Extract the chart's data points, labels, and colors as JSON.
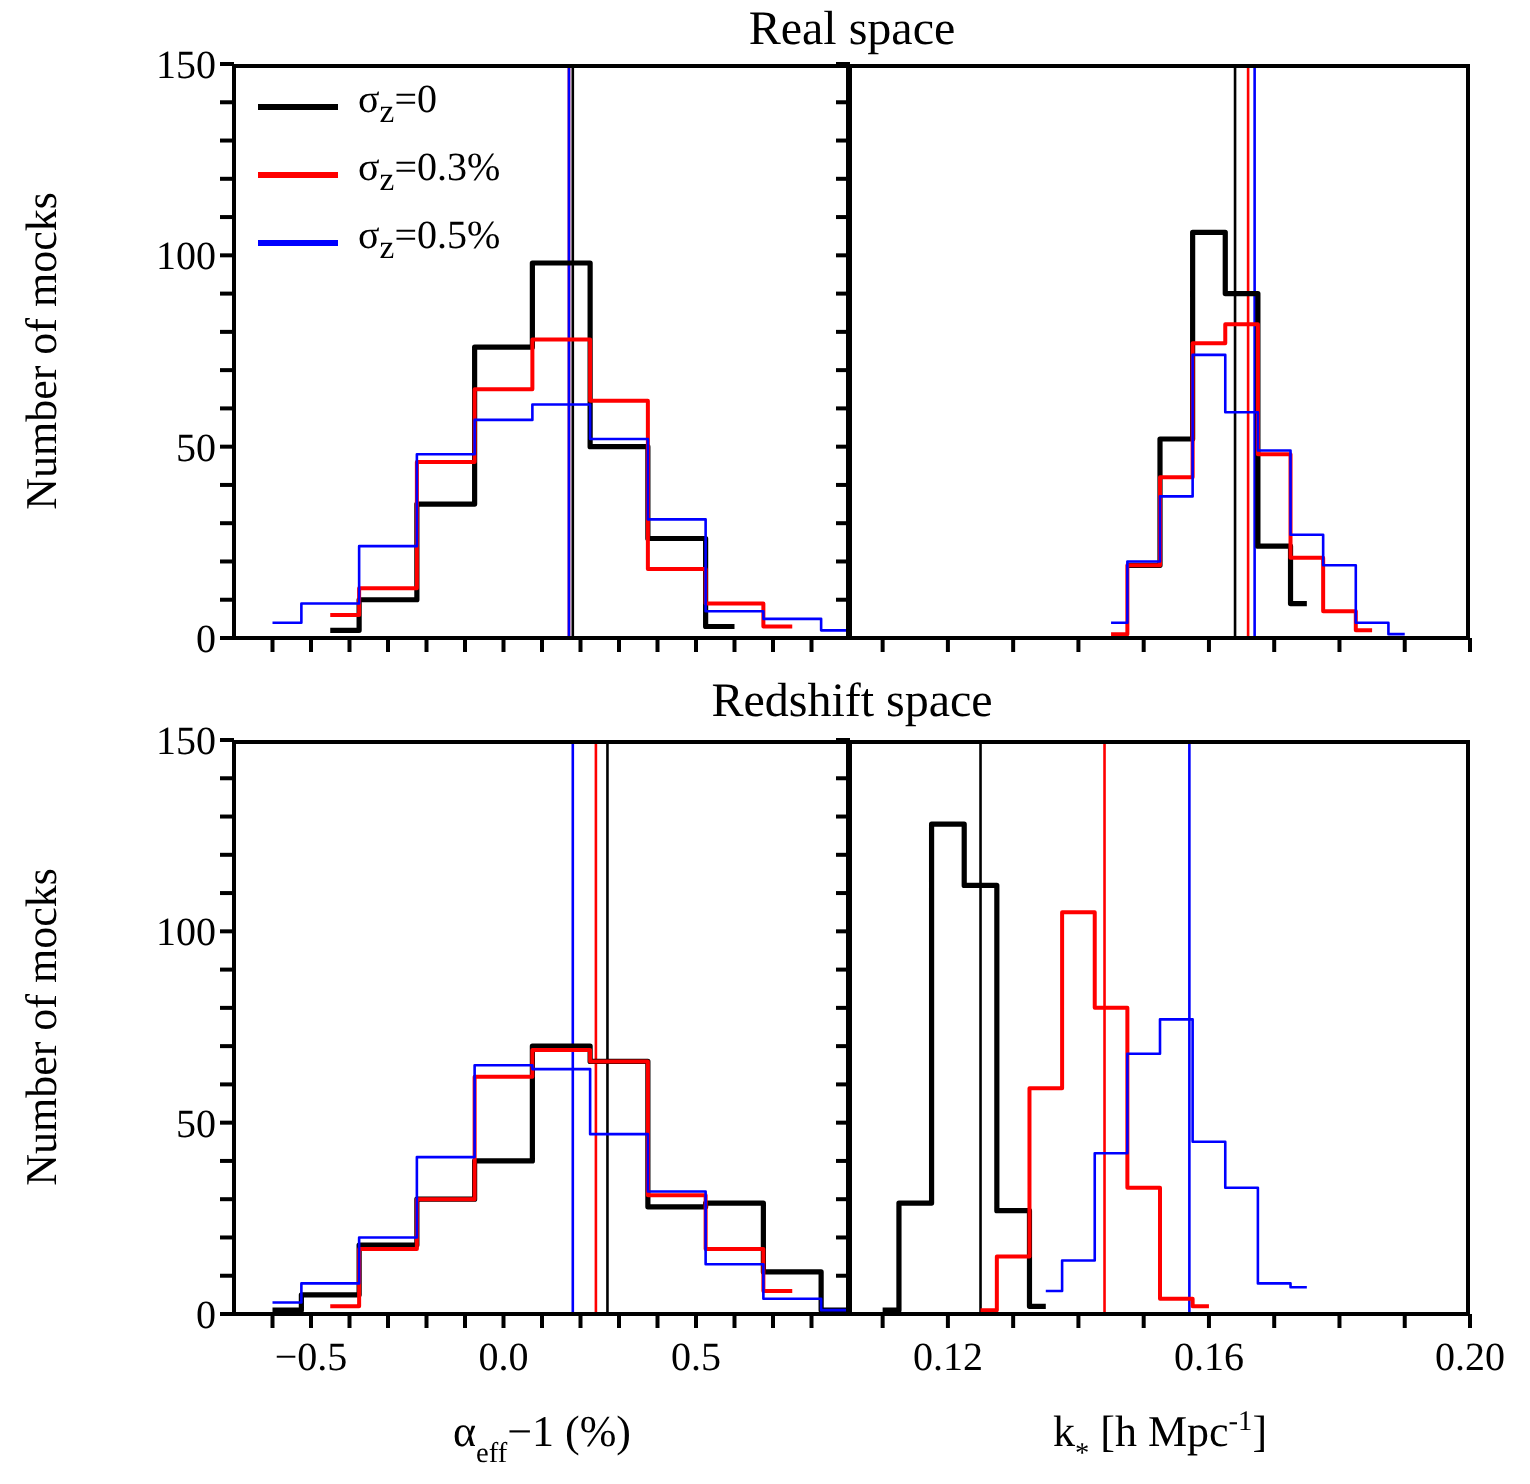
{
  "chart_data": [
    {
      "type": "step",
      "title": "Real space",
      "ylabel": "Number of mocks",
      "legend": "top left",
      "tick_labels": "y",
      "xlim": [
        -0.7,
        0.9
      ],
      "ylim": [
        0,
        150
      ],
      "xticks": [
        {
          "value": -0.6,
          "label": null
        },
        {
          "value": -0.5,
          "label": null
        },
        {
          "value": -0.4,
          "label": null
        },
        {
          "value": -0.3,
          "label": null
        },
        {
          "value": -0.2,
          "label": null
        },
        {
          "value": -0.1,
          "label": null
        },
        {
          "value": 0,
          "label": null
        },
        {
          "value": 0.1,
          "label": null
        },
        {
          "value": 0.2,
          "label": null
        },
        {
          "value": 0.3,
          "label": null
        },
        {
          "value": 0.4,
          "label": null
        },
        0.5,
        {
          "value": 0.6,
          "label": null
        },
        {
          "value": 0.7,
          "label": null
        },
        {
          "value": 0.8,
          "label": null
        }
      ],
      "yticks": [
        0,
        {
          "value": 10,
          "label": null
        },
        {
          "value": 20,
          "label": null
        },
        {
          "value": 30,
          "label": null
        },
        {
          "value": 40,
          "label": null
        },
        50,
        {
          "value": 60,
          "label": null
        },
        {
          "value": 70,
          "label": null
        },
        {
          "value": 80,
          "label": null
        },
        {
          "value": 90,
          "label": null
        },
        100,
        {
          "value": 110,
          "label": null
        },
        {
          "value": 120,
          "label": null
        },
        {
          "value": 130,
          "label": null
        },
        {
          "value": 140,
          "label": null
        },
        150
      ],
      "series": [
        {
          "name": "σ$_{z}$=0",
          "color": "#000000",
          "x": [
            -0.45,
            -0.375,
            -0.225,
            -0.075,
            0.075,
            0.225,
            0.375,
            0.525,
            0.6
          ],
          "values": [
            2,
            10,
            35,
            76,
            98,
            50,
            26,
            3,
            3
          ]
        },
        {
          "name": "σ$_{z}$=0.3%",
          "color": "#ff0000",
          "x": [
            -0.45,
            -0.375,
            -0.225,
            -0.075,
            0.075,
            0.225,
            0.375,
            0.525,
            0.675,
            0.75
          ],
          "values": [
            6,
            13,
            46,
            65,
            78,
            62,
            18,
            9,
            3,
            3
          ]
        },
        {
          "name": "σ$_{z}$=0.5%",
          "color": "#0000ff",
          "x": [
            -0.6,
            -0.525,
            -0.375,
            -0.225,
            -0.075,
            0.075,
            0.225,
            0.375,
            0.525,
            0.675,
            0.825,
            0.9
          ],
          "values": [
            4,
            9,
            24,
            48,
            57,
            61,
            52,
            31,
            7,
            5,
            2,
            2
          ]
        }
      ],
      "ref_lines": [
        {
          "axis": "x",
          "value": 0.18,
          "color": "#000000"
        },
        {
          "axis": "x",
          "value": 0.17,
          "color": "#ff0000"
        },
        {
          "axis": "x",
          "value": 0.17,
          "color": "#0000ff"
        }
      ]
    },
    {
      "type": "step",
      "tick_labels": false,
      "xlim": [
        0.105,
        0.2
      ],
      "ylim": [
        0,
        150
      ],
      "xticks": [
        {
          "value": 0.11,
          "label": null
        },
        0.12,
        {
          "value": 0.13,
          "label": null
        },
        {
          "value": 0.14,
          "label": null
        },
        {
          "value": 0.15,
          "label": null
        },
        0.16,
        {
          "value": 0.17,
          "label": null
        },
        {
          "value": 0.18,
          "label": null
        },
        {
          "value": 0.19,
          "label": null
        },
        {
          "value": 0.2,
          "label": null
        }
      ],
      "yticks": [
        0,
        {
          "value": 10,
          "label": null
        },
        {
          "value": 20,
          "label": null
        },
        {
          "value": 30,
          "label": null
        },
        {
          "value": 40,
          "label": null
        },
        50,
        {
          "value": 60,
          "label": null
        },
        {
          "value": 70,
          "label": null
        },
        {
          "value": 80,
          "label": null
        },
        {
          "value": 90,
          "label": null
        },
        100,
        {
          "value": 110,
          "label": null
        },
        {
          "value": 120,
          "label": null
        },
        {
          "value": 130,
          "label": null
        },
        {
          "value": 140,
          "label": null
        },
        150
      ],
      "series": [
        {
          "color": "#000000",
          "x": [
            0.1475,
            0.1525,
            0.1575,
            0.1625,
            0.1675,
            0.1725,
            0.175
          ],
          "values": [
            19,
            52,
            106,
            90,
            24,
            9,
            9
          ]
        },
        {
          "color": "#ff0000",
          "x": [
            0.145,
            0.1475,
            0.1525,
            0.1575,
            0.1625,
            0.1675,
            0.1725,
            0.1775,
            0.1825,
            0.185
          ],
          "values": [
            1,
            19,
            42,
            77,
            82,
            48,
            21,
            7,
            2,
            2
          ]
        },
        {
          "color": "#0000ff",
          "x": [
            0.145,
            0.1475,
            0.1525,
            0.1575,
            0.1625,
            0.1675,
            0.1725,
            0.1775,
            0.1825,
            0.1875,
            0.19
          ],
          "values": [
            4,
            20,
            37,
            74,
            59,
            49,
            27,
            19,
            4,
            1,
            1
          ]
        }
      ],
      "ref_lines": [
        {
          "axis": "x",
          "value": 0.164,
          "color": "#000000"
        },
        {
          "axis": "x",
          "value": 0.166,
          "color": "#ff0000"
        },
        {
          "axis": "x",
          "value": 0.167,
          "color": "#0000ff"
        }
      ]
    },
    {
      "type": "step",
      "title": "Redshift space",
      "xlabel": "α$_{eff}$−1 (%)",
      "ylabel": "Number of mocks",
      "xlim": [
        -0.7,
        0.9
      ],
      "ylim": [
        0,
        150
      ],
      "xticks": [
        {
          "value": -0.6,
          "label": null
        },
        {
          "value": -0.5,
          "label": "−0.5"
        },
        {
          "value": -0.4,
          "label": null
        },
        {
          "value": -0.3,
          "label": null
        },
        {
          "value": -0.2,
          "label": null
        },
        {
          "value": -0.1,
          "label": null
        },
        {
          "value": 0,
          "label": "0.0"
        },
        {
          "value": 0.1,
          "label": null
        },
        {
          "value": 0.2,
          "label": null
        },
        {
          "value": 0.3,
          "label": null
        },
        {
          "value": 0.4,
          "label": null
        },
        0.5,
        {
          "value": 0.6,
          "label": null
        },
        {
          "value": 0.7,
          "label": null
        },
        {
          "value": 0.8,
          "label": null
        }
      ],
      "yticks": [
        0,
        {
          "value": 10,
          "label": null
        },
        {
          "value": 20,
          "label": null
        },
        {
          "value": 30,
          "label": null
        },
        {
          "value": 40,
          "label": null
        },
        50,
        {
          "value": 60,
          "label": null
        },
        {
          "value": 70,
          "label": null
        },
        {
          "value": 80,
          "label": null
        },
        {
          "value": 90,
          "label": null
        },
        100,
        {
          "value": 110,
          "label": null
        },
        {
          "value": 120,
          "label": null
        },
        {
          "value": 130,
          "label": null
        },
        {
          "value": 140,
          "label": null
        },
        150
      ],
      "series": [
        {
          "color": "#000000",
          "x": [
            -0.6,
            -0.525,
            -0.375,
            -0.225,
            -0.075,
            0.075,
            0.225,
            0.375,
            0.525,
            0.675,
            0.825,
            0.9
          ],
          "values": [
            1,
            5,
            18,
            30,
            40,
            70,
            66,
            28,
            29,
            11,
            1,
            1
          ]
        },
        {
          "color": "#ff0000",
          "x": [
            -0.45,
            -0.375,
            -0.225,
            -0.075,
            0.075,
            0.225,
            0.375,
            0.525,
            0.675,
            0.75
          ],
          "values": [
            2,
            17,
            30,
            62,
            69,
            66,
            31,
            17,
            6,
            6
          ]
        },
        {
          "color": "#0000ff",
          "x": [
            -0.6,
            -0.525,
            -0.375,
            -0.225,
            -0.075,
            0.075,
            0.225,
            0.375,
            0.525,
            0.675,
            0.825,
            0.9
          ],
          "values": [
            3,
            8,
            20,
            41,
            65,
            64,
            47,
            32,
            13,
            4,
            1,
            1
          ]
        }
      ],
      "ref_lines": [
        {
          "axis": "x",
          "value": 0.27,
          "color": "#000000"
        },
        {
          "axis": "x",
          "value": 0.24,
          "color": "#ff0000"
        },
        {
          "axis": "x",
          "value": 0.18,
          "color": "#0000ff"
        }
      ]
    },
    {
      "type": "step",
      "xlabel": "k$_{*}$ [h Mpc$^{-1}$]",
      "tick_labels": "x",
      "xlim": [
        0.105,
        0.2
      ],
      "ylim": [
        0,
        150
      ],
      "xticks": [
        {
          "value": 0.11,
          "label": null
        },
        0.12,
        {
          "value": 0.13,
          "label": null
        },
        {
          "value": 0.14,
          "label": null
        },
        {
          "value": 0.15,
          "label": null
        },
        0.16,
        {
          "value": 0.17,
          "label": null
        },
        {
          "value": 0.18,
          "label": null
        },
        {
          "value": 0.19,
          "label": null
        },
        {
          "value": 0.2,
          "label": "0.20"
        }
      ],
      "yticks": [
        0,
        {
          "value": 10,
          "label": null
        },
        {
          "value": 20,
          "label": null
        },
        {
          "value": 30,
          "label": null
        },
        {
          "value": 40,
          "label": null
        },
        50,
        {
          "value": 60,
          "label": null
        },
        {
          "value": 70,
          "label": null
        },
        {
          "value": 80,
          "label": null
        },
        {
          "value": 90,
          "label": null
        },
        100,
        {
          "value": 110,
          "label": null
        },
        {
          "value": 120,
          "label": null
        },
        {
          "value": 130,
          "label": null
        },
        {
          "value": 140,
          "label": null
        },
        150
      ],
      "series": [
        {
          "color": "#000000",
          "x": [
            0.11,
            0.1125,
            0.1175,
            0.1225,
            0.1275,
            0.1325,
            0.135
          ],
          "values": [
            1,
            29,
            128,
            112,
            27,
            2,
            2
          ]
        },
        {
          "color": "#ff0000",
          "x": [
            0.125,
            0.1275,
            0.1325,
            0.1375,
            0.1425,
            0.1475,
            0.1525,
            0.1575,
            0.16
          ],
          "values": [
            1,
            15,
            59,
            105,
            80,
            33,
            4,
            2,
            2
          ]
        },
        {
          "color": "#0000ff",
          "x": [
            0.135,
            0.1375,
            0.1425,
            0.1475,
            0.1525,
            0.1575,
            0.1625,
            0.1675,
            0.1725,
            0.175
          ],
          "values": [
            6,
            14,
            42,
            68,
            77,
            45,
            33,
            8,
            7,
            7
          ]
        }
      ],
      "ref_lines": [
        {
          "axis": "x",
          "value": 0.125,
          "color": "#000000"
        },
        {
          "axis": "x",
          "value": 0.144,
          "color": "#ff0000"
        },
        {
          "axis": "x",
          "value": 0.157,
          "color": "#0000ff"
        }
      ]
    }
  ]
}
